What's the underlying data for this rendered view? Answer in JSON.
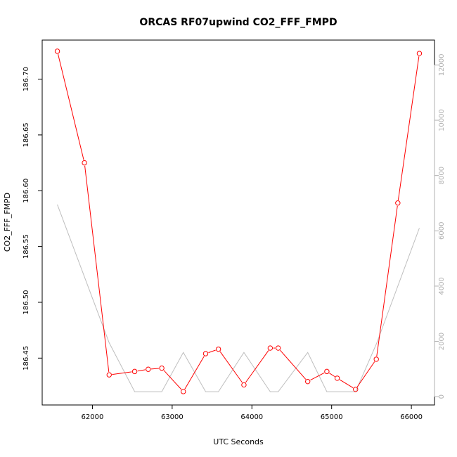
{
  "chart_data": {
    "type": "line",
    "title": "ORCAS RF07upwind CO2_FFF_FMPD",
    "xlabel": "UTC Seconds",
    "ylabel": "CO2_FFF_FMPD",
    "xlim": [
      61370,
      66290
    ],
    "ylim": [
      186.408,
      186.735
    ],
    "x_ticks": [
      62000,
      63000,
      64000,
      65000,
      66000
    ],
    "y_ticks": [
      "186.45",
      "186.50",
      "186.55",
      "186.60",
      "186.65",
      "186.70"
    ],
    "y2lim": [
      -300,
      12900
    ],
    "y2_ticks": [
      0,
      2000,
      4000,
      6000,
      8000,
      10000,
      12000
    ],
    "colors": {
      "primary": "#ff0000",
      "secondary": "#bebebe"
    },
    "series": [
      {
        "axis": "left",
        "style": "line-with-open-circles",
        "x": [
          61560,
          61900,
          62210,
          62530,
          62700,
          62870,
          63140,
          63420,
          63580,
          63900,
          64230,
          64330,
          64700,
          64940,
          65070,
          65300,
          65560,
          65830,
          66100
        ],
        "y": [
          186.725,
          186.625,
          186.435,
          186.438,
          186.44,
          186.441,
          186.42,
          186.454,
          186.458,
          186.426,
          186.459,
          186.459,
          186.429,
          186.438,
          186.432,
          186.422,
          186.449,
          186.589,
          186.723
        ]
      },
      {
        "axis": "right",
        "style": "line",
        "x": [
          61560,
          62210,
          62530,
          62870,
          63140,
          63420,
          63580,
          63900,
          64230,
          64330,
          64700,
          64940,
          65300,
          65560,
          66100
        ],
        "y": [
          6950,
          1950,
          180,
          180,
          1600,
          180,
          180,
          1600,
          180,
          180,
          1600,
          180,
          180,
          1900,
          6100
        ]
      }
    ]
  }
}
